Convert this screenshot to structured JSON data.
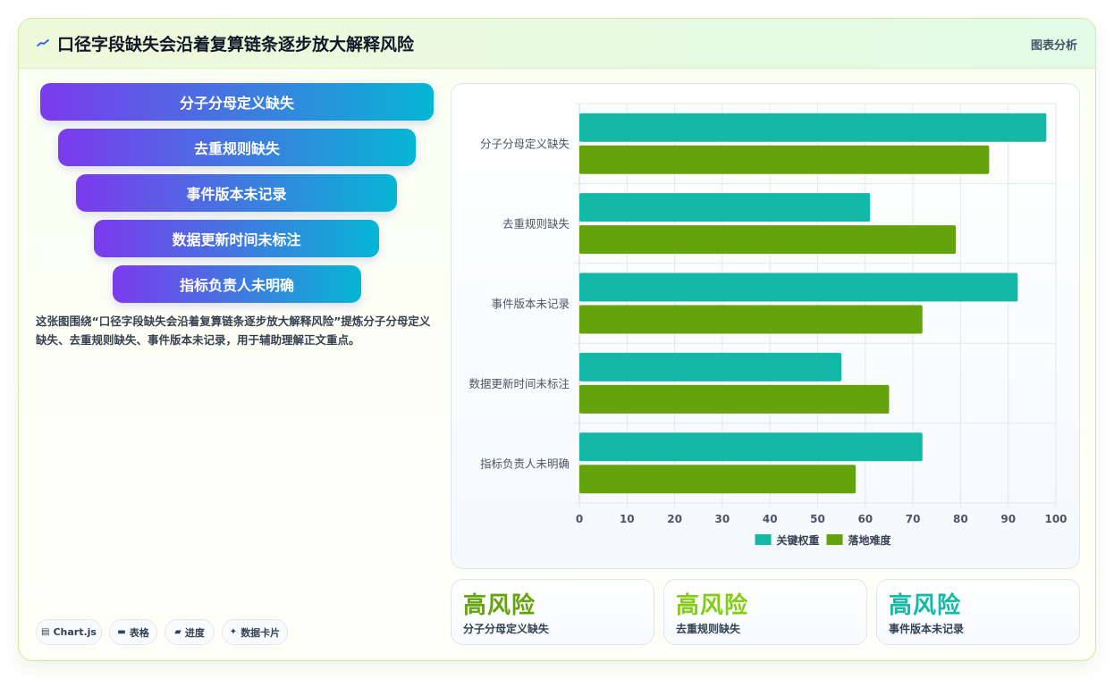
{
  "header": {
    "title": "口径字段缺失会沿着复算链条逐步放大解释风险",
    "tag": "图表分析"
  },
  "funnel": {
    "items": [
      "分子分母定义缺失",
      "去重规则缺失",
      "事件版本未记录",
      "数据更新时间未标注",
      "指标负责人未明确"
    ]
  },
  "description": "这张图围绕“口径字段缺失会沿着复算链条逐步放大解释风险”提炼分子分母定义缺失、去重规则缺失、事件版本未记录，用于辅助理解正文重点。",
  "chips": [
    {
      "icon": "chart-icon",
      "label": "Chart.js"
    },
    {
      "icon": "table-icon",
      "label": "表格"
    },
    {
      "icon": "progress-icon",
      "label": "进度"
    },
    {
      "icon": "sparkle-icon",
      "label": "数据卡片"
    }
  ],
  "stats": [
    {
      "value": "高风险",
      "label": "分子分母定义缺失",
      "color": "#65a30d"
    },
    {
      "value": "高风险",
      "label": "去重规则缺失",
      "color": "#84cc16"
    },
    {
      "value": "高风险",
      "label": "事件版本未记录",
      "color": "#14b8a6"
    }
  ],
  "colors": {
    "series_1": "#14b8a6",
    "series_2": "#65a30d"
  },
  "chart_data": {
    "type": "bar",
    "orientation": "horizontal",
    "categories": [
      "分子分母定义缺失",
      "去重规则缺失",
      "事件版本未记录",
      "数据更新时间未标注",
      "指标负责人未明确"
    ],
    "series": [
      {
        "name": "关键权重",
        "values": [
          98,
          61,
          92,
          55,
          72
        ],
        "color": "#14b8a6"
      },
      {
        "name": "落地难度",
        "values": [
          86,
          79,
          72,
          65,
          58
        ],
        "color": "#65a30d"
      }
    ],
    "xlim": [
      0,
      100
    ],
    "x_ticks": [
      "0",
      "10",
      "20",
      "30",
      "40",
      "50",
      "60",
      "70",
      "80",
      "90",
      "100"
    ],
    "grid": true,
    "legend": "bottom"
  }
}
